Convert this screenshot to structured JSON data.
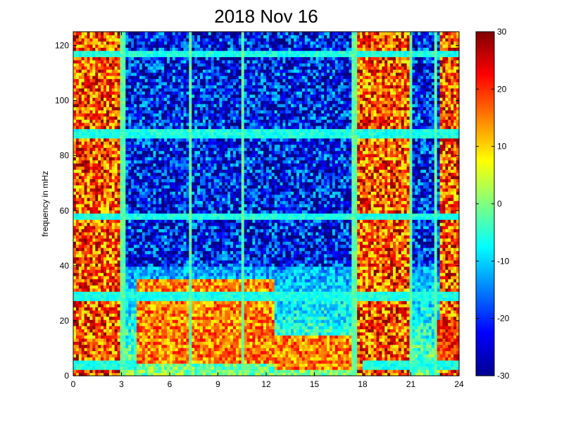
{
  "chart_data": {
    "type": "heatmap",
    "title": "2018 Nov 16",
    "xlabel": "",
    "ylabel": "frequency in mHz",
    "xlim": [
      0,
      24
    ],
    "ylim": [
      0,
      125
    ],
    "x_ticks": [
      "0",
      "3",
      "6",
      "9",
      "12",
      "15",
      "18",
      "21",
      "24"
    ],
    "y_ticks": [
      "0",
      "20",
      "40",
      "60",
      "80",
      "100",
      "120"
    ],
    "colorbar": {
      "colormap": "jet",
      "clim": [
        -30,
        30
      ],
      "ticks": [
        "-30",
        "-20",
        "-10",
        "0",
        "10",
        "20",
        "30"
      ]
    },
    "horizontal_lines_mHz": [
      4,
      29,
      58,
      88,
      117
    ],
    "vertical_lines_hours": [
      3.0,
      3.2,
      7.3,
      10.5,
      17.5,
      21.0,
      22.6
    ],
    "background_high_hours": [
      [
        0,
        3
      ],
      [
        17.5,
        21
      ],
      [
        22.8,
        24
      ]
    ],
    "activity_regions": [
      {
        "hours": [
          4,
          12.5
        ],
        "mHz": [
          5,
          35
        ],
        "level": 15
      },
      {
        "hours": [
          12.5,
          17.5
        ],
        "mHz": [
          2,
          15
        ],
        "level": 15
      },
      {
        "hours": [
          22.5,
          24
        ],
        "mHz": [
          3,
          20
        ],
        "level": 20
      }
    ]
  }
}
